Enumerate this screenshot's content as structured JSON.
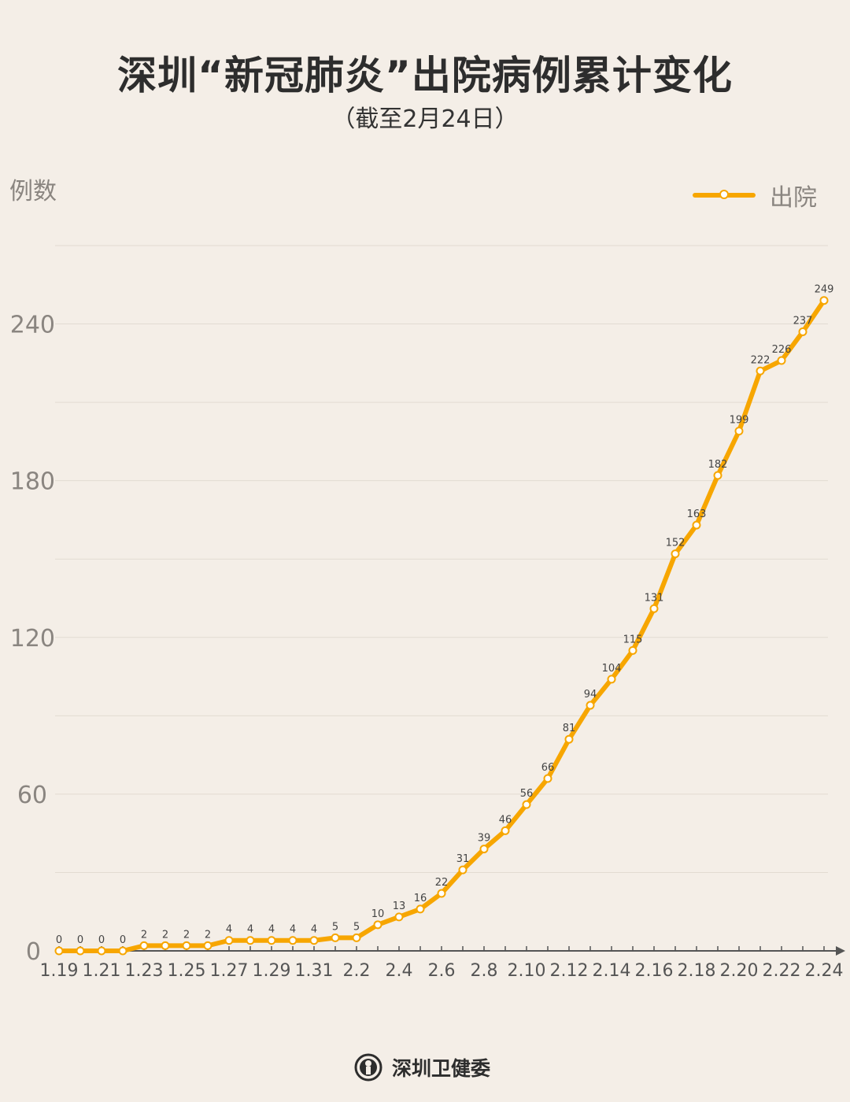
{
  "title": "深圳“新冠肺炎”出院病例累计变化",
  "subtitle": "（截至2月24日）",
  "footer": {
    "org": "深圳卫健委",
    "logo_icon": "shenzhen-health-commission-emblem"
  },
  "chart_data": {
    "type": "line",
    "title": "深圳“新冠肺炎”出院病例累计变化",
    "subtitle": "（截至2月24日）",
    "ylabel": "例数",
    "xlabel": "",
    "ylim": [
      0,
      270
    ],
    "yticks": [
      0,
      60,
      120,
      180,
      240
    ],
    "grid": true,
    "legend": "top-right",
    "line_color": "#f7a600",
    "x": [
      "1.19",
      "1.20",
      "1.21",
      "1.22",
      "1.23",
      "1.24",
      "1.25",
      "1.26",
      "1.27",
      "1.28",
      "1.29",
      "1.30",
      "1.31",
      "2.1",
      "2.2",
      "2.3",
      "2.4",
      "2.5",
      "2.6",
      "2.7",
      "2.8",
      "2.9",
      "2.10",
      "2.11",
      "2.12",
      "2.13",
      "2.14",
      "2.15",
      "2.16",
      "2.17",
      "2.18",
      "2.19",
      "2.20",
      "2.21",
      "2.22",
      "2.23",
      "2.24"
    ],
    "xtick_labels": [
      "1.19",
      "1.21",
      "1.23",
      "1.25",
      "1.27",
      "1.29",
      "1.31",
      "2.2",
      "2.4",
      "2.6",
      "2.8",
      "2.10",
      "2.12",
      "2.14",
      "2.16",
      "2.18",
      "2.20",
      "2.22",
      "2.24"
    ],
    "series": [
      {
        "name": "出院",
        "values": [
          0,
          0,
          0,
          0,
          2,
          2,
          2,
          2,
          4,
          4,
          4,
          4,
          4,
          5,
          5,
          10,
          13,
          16,
          22,
          31,
          39,
          46,
          56,
          66,
          81,
          94,
          104,
          115,
          131,
          152,
          163,
          182,
          199,
          222,
          226,
          237,
          249
        ]
      }
    ]
  }
}
